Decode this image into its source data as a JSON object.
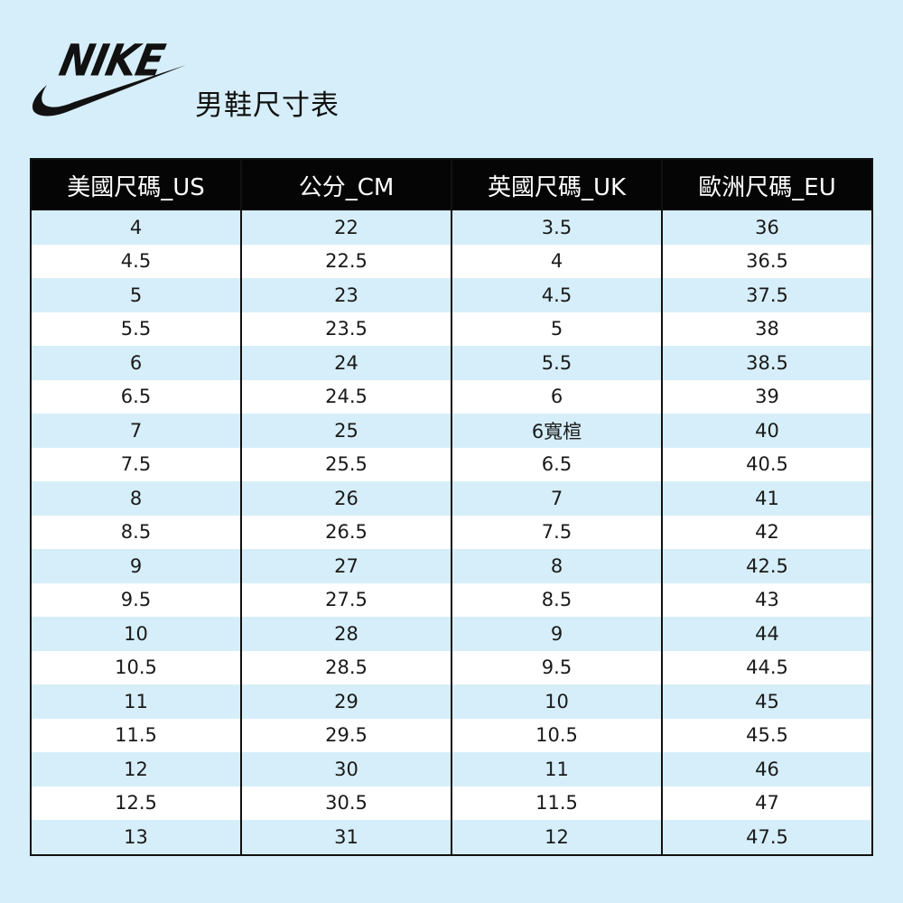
{
  "brand": {
    "wordmark": "NIKE",
    "logo_color": "#111111"
  },
  "title": "男鞋尺寸表",
  "table": {
    "headers": [
      "美國尺碼_US",
      "公分_CM",
      "英國尺碼_UK",
      "歐洲尺碼_EU"
    ],
    "rows": [
      [
        "4",
        "22",
        "3.5",
        "36"
      ],
      [
        "4.5",
        "22.5",
        "4",
        "36.5"
      ],
      [
        "5",
        "23",
        "4.5",
        "37.5"
      ],
      [
        "5.5",
        "23.5",
        "5",
        "38"
      ],
      [
        "6",
        "24",
        "5.5",
        "38.5"
      ],
      [
        "6.5",
        "24.5",
        "6",
        "39"
      ],
      [
        "7",
        "25",
        "6寬楦",
        "40"
      ],
      [
        "7.5",
        "25.5",
        "6.5",
        "40.5"
      ],
      [
        "8",
        "26",
        "7",
        "41"
      ],
      [
        "8.5",
        "26.5",
        "7.5",
        "42"
      ],
      [
        "9",
        "27",
        "8",
        "42.5"
      ],
      [
        "9.5",
        "27.5",
        "8.5",
        "43"
      ],
      [
        "10",
        "28",
        "9",
        "44"
      ],
      [
        "10.5",
        "28.5",
        "9.5",
        "44.5"
      ],
      [
        "11",
        "29",
        "10",
        "45"
      ],
      [
        "11.5",
        "29.5",
        "10.5",
        "45.5"
      ],
      [
        "12",
        "30",
        "11",
        "46"
      ],
      [
        "12.5",
        "30.5",
        "11.5",
        "47"
      ],
      [
        "13",
        "31",
        "12",
        "47.5"
      ]
    ]
  },
  "colors": {
    "background": "#d6eef9",
    "header_bg": "#050505",
    "header_text": "#ffffff",
    "row_alt": "#ffffff",
    "row_tint": "#d6eef9"
  }
}
